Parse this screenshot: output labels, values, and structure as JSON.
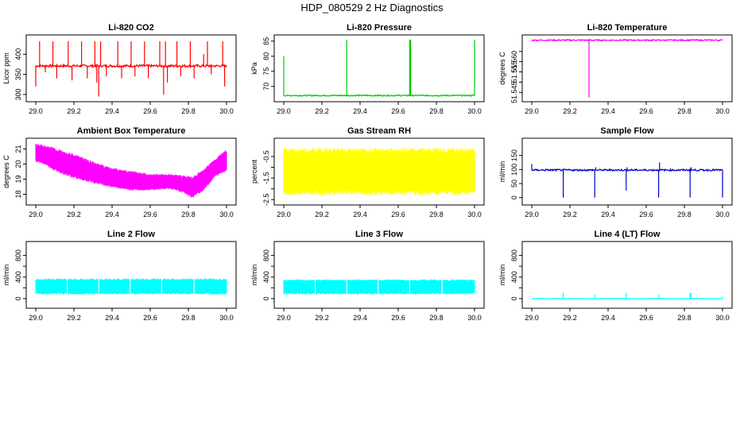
{
  "title": "HDP_080529  2 Hz Diagnostics",
  "chart_data": [
    {
      "type": "line",
      "title": "Li-820 CO2",
      "xlabel": "",
      "ylabel": "Licor ppm",
      "color": "#ff0000",
      "xlim": [
        29.0,
        30.0
      ],
      "ylim": [
        290,
        440
      ],
      "xticks": [
        "29.0",
        "29.2",
        "29.4",
        "29.6",
        "29.8",
        "30.0"
      ],
      "yticks": [
        300,
        350,
        400
      ],
      "ytick_labels": [
        "300",
        "350",
        "400"
      ],
      "series": [
        {
          "name": "CO2",
          "baseline": 371,
          "band_low": 368,
          "band_high": 374,
          "spikes": [
            {
              "x": 29.0,
              "y": 320
            },
            {
              "x": 29.02,
              "y": 432
            },
            {
              "x": 29.05,
              "y": 355
            },
            {
              "x": 29.09,
              "y": 432
            },
            {
              "x": 29.11,
              "y": 340
            },
            {
              "x": 29.17,
              "y": 432
            },
            {
              "x": 29.19,
              "y": 335
            },
            {
              "x": 29.24,
              "y": 432
            },
            {
              "x": 29.27,
              "y": 340
            },
            {
              "x": 29.31,
              "y": 432
            },
            {
              "x": 29.32,
              "y": 330
            },
            {
              "x": 29.33,
              "y": 295
            },
            {
              "x": 29.34,
              "y": 432
            },
            {
              "x": 29.37,
              "y": 345
            },
            {
              "x": 29.43,
              "y": 432
            },
            {
              "x": 29.45,
              "y": 340
            },
            {
              "x": 29.5,
              "y": 432
            },
            {
              "x": 29.52,
              "y": 345
            },
            {
              "x": 29.57,
              "y": 432
            },
            {
              "x": 29.59,
              "y": 340
            },
            {
              "x": 29.65,
              "y": 432
            },
            {
              "x": 29.67,
              "y": 300
            },
            {
              "x": 29.68,
              "y": 432
            },
            {
              "x": 29.69,
              "y": 330
            },
            {
              "x": 29.74,
              "y": 432
            },
            {
              "x": 29.76,
              "y": 345
            },
            {
              "x": 29.81,
              "y": 432
            },
            {
              "x": 29.83,
              "y": 340
            },
            {
              "x": 29.88,
              "y": 400
            },
            {
              "x": 29.9,
              "y": 432
            },
            {
              "x": 29.92,
              "y": 350
            },
            {
              "x": 29.98,
              "y": 432
            },
            {
              "x": 29.99,
              "y": 320
            }
          ]
        }
      ]
    },
    {
      "type": "line",
      "title": "Li-820 Pressure",
      "xlabel": "",
      "ylabel": "kPa",
      "color": "#00cc00",
      "xlim": [
        29.0,
        30.0
      ],
      "ylim": [
        66,
        86
      ],
      "xticks": [
        "29.0",
        "29.2",
        "29.4",
        "29.6",
        "29.8",
        "30.0"
      ],
      "yticks": [
        70,
        75,
        80,
        85
      ],
      "ytick_labels": [
        "70",
        "75",
        "80",
        "85"
      ],
      "series": [
        {
          "name": "Pressure",
          "baseline": 67,
          "band_low": 66.8,
          "band_high": 67.2,
          "spikes": [
            {
              "x": 29.0,
              "y": 80
            },
            {
              "x": 29.33,
              "y": 85.5
            },
            {
              "x": 29.66,
              "y": 85.5
            },
            {
              "x": 29.665,
              "y": 85.5
            },
            {
              "x": 30.0,
              "y": 85.5
            }
          ]
        }
      ]
    },
    {
      "type": "line",
      "title": "Li-820 Temperature",
      "xlabel": "",
      "ylabel": "degrees C",
      "color": "#ff00ff",
      "xlim": [
        29.0,
        30.0
      ],
      "ylim": [
        51.542,
        51.5715
      ],
      "xticks": [
        "29.0",
        "29.2",
        "29.4",
        "29.6",
        "29.8",
        "30.0"
      ],
      "yticks": [
        51.545,
        51.55,
        51.555,
        51.56,
        51.565
      ],
      "ytick_labels": [
        "51.545",
        "",
        "51.555",
        "51.560",
        ""
      ],
      "series": [
        {
          "name": "Temperature",
          "baseline": 51.5705,
          "band_low": 51.5702,
          "band_high": 51.5708,
          "spikes": [
            {
              "x": 29.3,
              "y": 51.5425
            }
          ]
        }
      ]
    },
    {
      "type": "area",
      "title": "Ambient Box Temperature",
      "xlabel": "",
      "ylabel": "degrees C",
      "color": "#ff00ff",
      "xlim": [
        29.0,
        30.0
      ],
      "ylim": [
        17.5,
        21.5
      ],
      "xticks": [
        "29.0",
        "29.2",
        "29.4",
        "29.6",
        "29.8",
        "30.0"
      ],
      "yticks": [
        18,
        19,
        20,
        21
      ],
      "ytick_labels": [
        "18",
        "19",
        "20",
        "21"
      ],
      "series": [
        {
          "name": "Box Temp",
          "x": [
            29.0,
            29.05,
            29.1,
            29.2,
            29.3,
            29.4,
            29.5,
            29.6,
            29.7,
            29.78,
            29.82,
            29.88,
            29.94,
            30.0
          ],
          "low": [
            20.2,
            20.0,
            19.6,
            19.1,
            18.8,
            18.5,
            18.3,
            18.3,
            18.4,
            18.1,
            17.8,
            18.3,
            19.2,
            19.6
          ],
          "high": [
            21.3,
            21.2,
            21.0,
            20.6,
            20.1,
            19.7,
            19.5,
            19.3,
            19.3,
            19.2,
            19.1,
            19.6,
            20.3,
            20.9
          ]
        }
      ]
    },
    {
      "type": "area",
      "title": "Gas Stream RH",
      "xlabel": "",
      "ylabel": "percent",
      "color": "#ffff00",
      "xlim": [
        29.0,
        30.0
      ],
      "ylim": [
        -2.6,
        0.2
      ],
      "xticks": [
        "29.0",
        "29.2",
        "29.4",
        "29.6",
        "29.8",
        "30.0"
      ],
      "yticks": [
        -2.5,
        -2.0,
        -1.5,
        -1.0,
        -0.5
      ],
      "ytick_labels": [
        "-2.5",
        "",
        "-1.5",
        "",
        "-0.5"
      ],
      "series": [
        {
          "name": "RH",
          "x": [
            29.0,
            30.0
          ],
          "low": [
            -2.2,
            -2.2
          ],
          "high": [
            -0.2,
            -0.2
          ]
        }
      ]
    },
    {
      "type": "line",
      "title": "Sample Flow",
      "xlabel": "",
      "ylabel": "ml/min",
      "color": "#0000cc",
      "xlim": [
        29.0,
        30.0
      ],
      "ylim": [
        -15,
        200
      ],
      "xticks": [
        "29.0",
        "29.2",
        "29.4",
        "29.6",
        "29.8",
        "30.0"
      ],
      "yticks": [
        0,
        50,
        100,
        150
      ],
      "ytick_labels": [
        "0",
        "50",
        "100",
        "150"
      ],
      "series": [
        {
          "name": "Sample Flow",
          "baseline": 98,
          "band_low": 95,
          "band_high": 101,
          "spikes": [
            {
              "x": 29.0,
              "y": 120
            },
            {
              "x": 29.165,
              "y": 0
            },
            {
              "x": 29.33,
              "y": 0
            },
            {
              "x": 29.335,
              "y": 108
            },
            {
              "x": 29.495,
              "y": 25
            },
            {
              "x": 29.5,
              "y": 108
            },
            {
              "x": 29.665,
              "y": 0
            },
            {
              "x": 29.67,
              "y": 125
            },
            {
              "x": 29.83,
              "y": 0
            },
            {
              "x": 29.835,
              "y": 108
            },
            {
              "x": 30.0,
              "y": 0
            }
          ]
        }
      ]
    },
    {
      "type": "area",
      "title": "Line 2 Flow",
      "xlabel": "",
      "ylabel": "ml/min",
      "color": "#00ffff",
      "xlim": [
        29.0,
        30.0
      ],
      "ylim": [
        -120,
        1000
      ],
      "xticks": [
        "29.0",
        "29.2",
        "29.4",
        "29.6",
        "29.8",
        "30.0"
      ],
      "yticks": [
        0,
        200,
        400,
        600,
        800
      ],
      "ytick_labels": [
        "0",
        "",
        "400",
        "",
        "800"
      ],
      "series": [
        {
          "name": "Line 2",
          "x": [
            29.0,
            30.0
          ],
          "low": [
            90,
            90
          ],
          "high": [
            360,
            360
          ],
          "gaps": [
            29.165,
            29.33,
            29.495,
            29.66,
            29.83
          ]
        }
      ]
    },
    {
      "type": "area",
      "title": "Line 3 Flow",
      "xlabel": "",
      "ylabel": "ml/min",
      "color": "#00ffff",
      "xlim": [
        29.0,
        30.0
      ],
      "ylim": [
        -120,
        1000
      ],
      "xticks": [
        "29.0",
        "29.2",
        "29.4",
        "29.6",
        "29.8",
        "30.0"
      ],
      "yticks": [
        0,
        200,
        400,
        600,
        800
      ],
      "ytick_labels": [
        "0",
        "",
        "400",
        "",
        "800"
      ],
      "series": [
        {
          "name": "Line 3",
          "x": [
            29.0,
            30.0
          ],
          "low": [
            90,
            90
          ],
          "high": [
            345,
            345
          ],
          "gaps": [
            29.165,
            29.33,
            29.495,
            29.66,
            29.83
          ]
        }
      ]
    },
    {
      "type": "line",
      "title": "Line 4 (LT) Flow",
      "xlabel": "",
      "ylabel": "ml/min",
      "color": "#00ffff",
      "xlim": [
        29.0,
        30.0
      ],
      "ylim": [
        -120,
        1000
      ],
      "xticks": [
        "29.0",
        "29.2",
        "29.4",
        "29.6",
        "29.8",
        "30.0"
      ],
      "yticks": [
        0,
        200,
        400,
        600,
        800
      ],
      "ytick_labels": [
        "0",
        "",
        "400",
        "",
        "800"
      ],
      "series": [
        {
          "name": "Line 4",
          "baseline": 0,
          "band_low": -3,
          "band_high": 3,
          "spikes": [
            {
              "x": 29.165,
              "y": 110
            },
            {
              "x": 29.33,
              "y": 70
            },
            {
              "x": 29.495,
              "y": 110
            },
            {
              "x": 29.665,
              "y": 70
            },
            {
              "x": 29.83,
              "y": 100
            },
            {
              "x": 29.835,
              "y": 110
            },
            {
              "x": 30.0,
              "y": 30
            }
          ]
        }
      ]
    }
  ]
}
